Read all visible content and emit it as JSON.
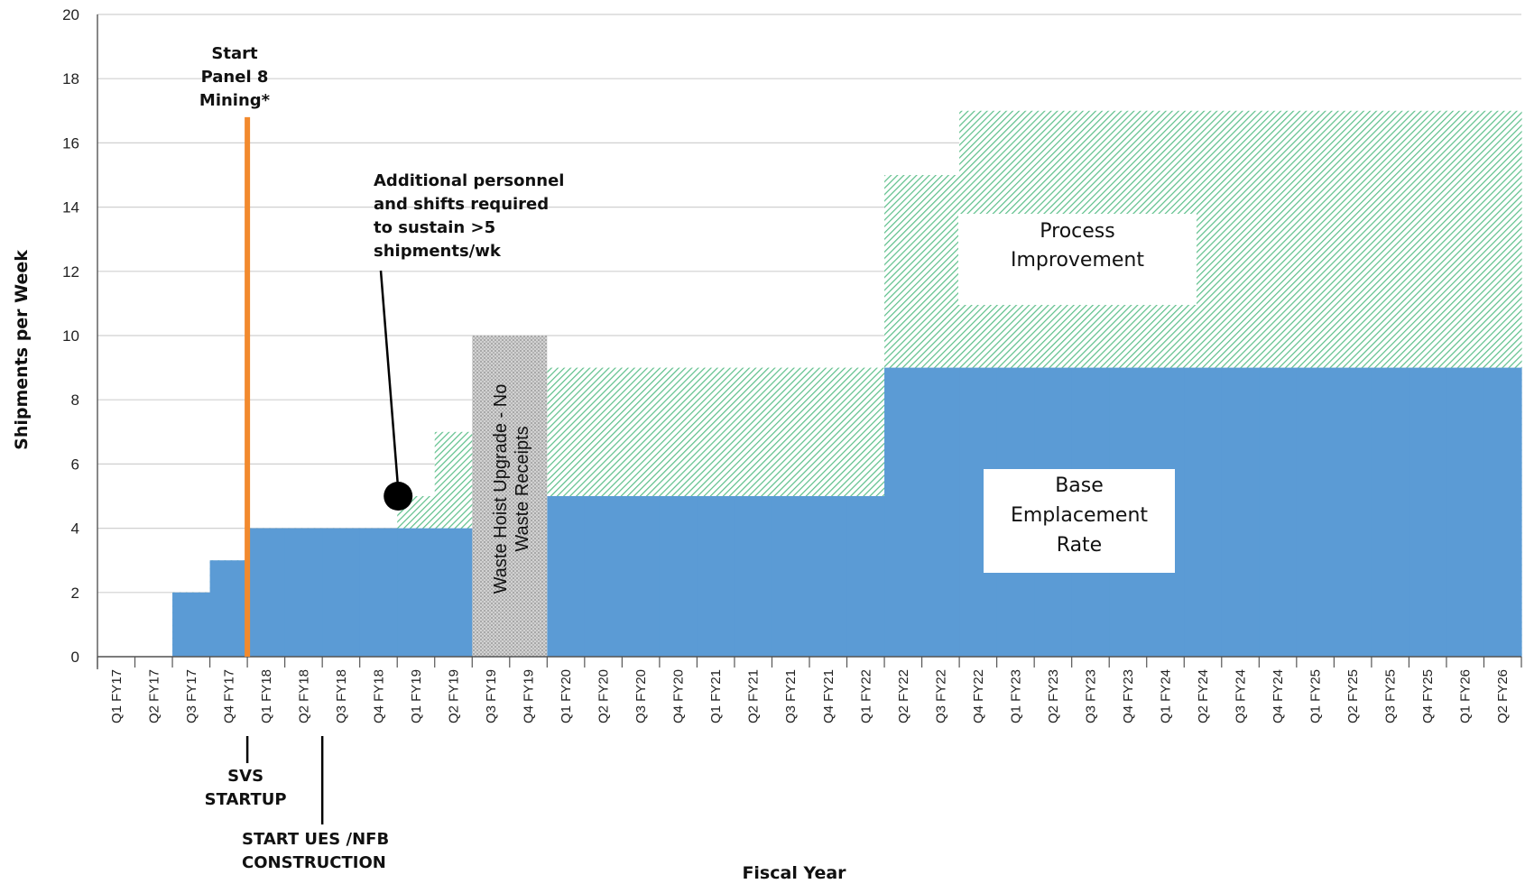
{
  "chart_data": {
    "type": "area",
    "title": "",
    "xlabel": "Fiscal Year",
    "ylabel": "Shipments per Week",
    "ylim": [
      0,
      20
    ],
    "yticks": [
      0,
      2,
      4,
      6,
      8,
      10,
      12,
      14,
      16,
      18,
      20
    ],
    "grid": true,
    "categories": [
      "Q1 FY17",
      "Q2 FY17",
      "Q3 FY17",
      "Q4 FY17",
      "Q1 FY18",
      "Q2 FY18",
      "Q3 FY18",
      "Q4 FY18",
      "Q1 FY19",
      "Q2 FY19",
      "Q3 FY19",
      "Q4 FY19",
      "Q1 FY20",
      "Q2 FY20",
      "Q3 FY20",
      "Q4 FY20",
      "Q1 FY21",
      "Q2 FY21",
      "Q3 FY21",
      "Q4 FY21",
      "Q1 FY22",
      "Q2 FY22",
      "Q3 FY22",
      "Q4 FY22",
      "Q1 FY23",
      "Q2 FY23",
      "Q3 FY23",
      "Q4 FY23",
      "Q1 FY24",
      "Q2 FY24",
      "Q3 FY24",
      "Q4 FY24",
      "Q1 FY25",
      "Q2 FY25",
      "Q3 FY25",
      "Q4 FY25",
      "Q1 FY26",
      "Q2 FY26"
    ],
    "series": [
      {
        "name": "Base Emplacement Rate",
        "color": "#5b9bd5",
        "values": [
          0,
          0,
          2,
          3,
          4,
          4,
          4,
          4,
          4,
          4,
          0,
          0,
          5,
          5,
          5,
          5,
          5,
          5,
          5,
          5,
          5,
          9,
          9,
          9,
          9,
          9,
          9,
          9,
          9,
          9,
          9,
          9,
          9,
          9,
          9,
          9,
          9,
          9
        ]
      },
      {
        "name": "Process Improvement",
        "color": "#6fcf97",
        "pattern": "diagonal-hatch",
        "values": [
          0,
          0,
          2,
          3,
          4,
          4,
          4,
          4,
          5,
          7,
          0,
          0,
          9,
          9,
          9,
          9,
          9,
          9,
          9,
          9,
          9,
          15,
          15,
          17,
          17,
          17,
          17,
          17,
          17,
          17,
          17,
          17,
          17,
          17,
          17,
          17,
          17,
          17
        ]
      }
    ],
    "shutdown_period": {
      "label": "Waste Hoist Upgrade - No Waste Receipts",
      "start": "Q3 FY19",
      "end": "Q4 FY19",
      "value": 10,
      "color": "#c8c8c8"
    },
    "vertical_marker": {
      "label": "Start Panel 8 Mining*",
      "label_lines": [
        "Start",
        "Panel 8",
        "Mining*"
      ],
      "at": "Q1 FY18",
      "top": 16.8,
      "color": "#f28a2e"
    },
    "annotations": [
      {
        "id": "personnel",
        "lines": [
          "Additional personnel",
          "and shifts required",
          "to sustain >5",
          "shipments/wk"
        ],
        "point_category": "Q1 FY19",
        "point_value": 5
      },
      {
        "id": "svs",
        "lines": [
          "SVS",
          "STARTUP"
        ],
        "at": "Q1 FY18"
      },
      {
        "id": "ues",
        "lines": [
          "START UES /NFB",
          "CONSTRUCTION"
        ],
        "at": "Q3 FY18"
      }
    ],
    "legend_boxes": [
      {
        "id": "process",
        "lines": [
          "Process",
          "Improvement"
        ],
        "placement": "upper-right"
      },
      {
        "id": "base",
        "lines": [
          "Base",
          "Emplacement",
          "Rate"
        ],
        "placement": "lower-right"
      }
    ]
  }
}
